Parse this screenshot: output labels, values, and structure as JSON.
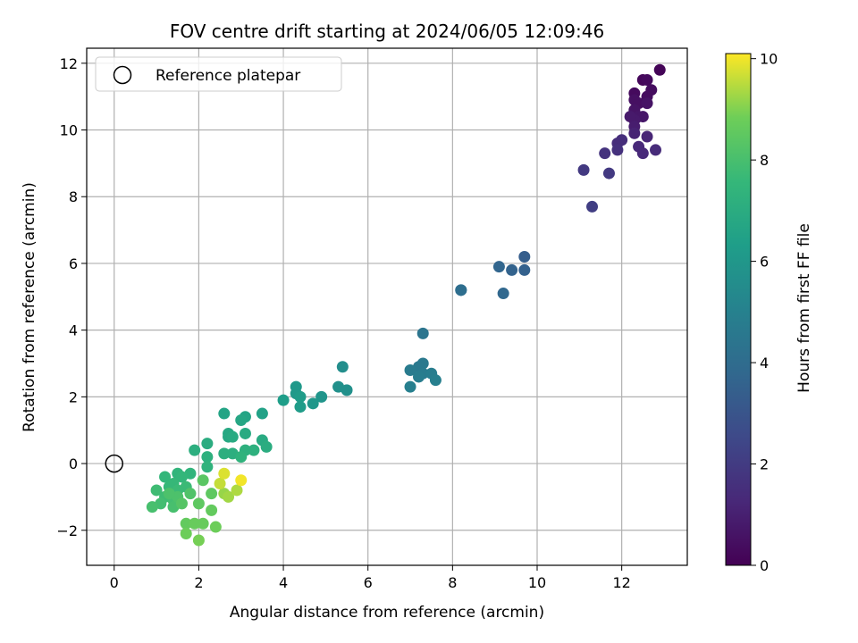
{
  "chart_data": {
    "type": "scatter",
    "title": "FOV centre drift starting at 2024/06/05 12:09:46",
    "xlabel": "Angular distance from reference (arcmin)",
    "ylabel": "Rotation from reference (arcmin)",
    "xlim": [
      -0.65,
      13.55
    ],
    "ylim": [
      -3.05,
      12.45
    ],
    "xticks": [
      0,
      2,
      4,
      6,
      8,
      10,
      12
    ],
    "yticks": [
      -2,
      0,
      2,
      4,
      6,
      8,
      10,
      12
    ],
    "grid": true,
    "legend": {
      "position": "top-left",
      "entries": [
        "Reference platepar"
      ]
    },
    "reference_point": {
      "x": 0,
      "y": 0
    },
    "colorbar": {
      "label": "Hours from first FF file",
      "range": [
        0,
        10.1
      ],
      "ticks": [
        0,
        2,
        4,
        6,
        8,
        10
      ],
      "colormap": "viridis"
    },
    "points": [
      {
        "x": 12.9,
        "y": 11.8,
        "h": 0.1
      },
      {
        "x": 12.5,
        "y": 11.5,
        "h": 0.2
      },
      {
        "x": 12.6,
        "y": 11.5,
        "h": 0.3
      },
      {
        "x": 12.3,
        "y": 11.1,
        "h": 0.3
      },
      {
        "x": 12.7,
        "y": 11.2,
        "h": 0.4
      },
      {
        "x": 12.6,
        "y": 11.0,
        "h": 0.4
      },
      {
        "x": 12.3,
        "y": 10.9,
        "h": 0.5
      },
      {
        "x": 12.4,
        "y": 10.8,
        "h": 0.5
      },
      {
        "x": 12.3,
        "y": 10.6,
        "h": 0.6
      },
      {
        "x": 12.6,
        "y": 10.8,
        "h": 0.6
      },
      {
        "x": 12.4,
        "y": 10.4,
        "h": 0.7
      },
      {
        "x": 12.5,
        "y": 10.4,
        "h": 0.7
      },
      {
        "x": 12.3,
        "y": 10.3,
        "h": 0.8
      },
      {
        "x": 12.2,
        "y": 10.4,
        "h": 0.8
      },
      {
        "x": 12.3,
        "y": 10.1,
        "h": 0.9
      },
      {
        "x": 12.3,
        "y": 9.9,
        "h": 1.1
      },
      {
        "x": 12.6,
        "y": 9.8,
        "h": 1.2
      },
      {
        "x": 12.4,
        "y": 9.5,
        "h": 1.3
      },
      {
        "x": 12.5,
        "y": 9.3,
        "h": 1.3
      },
      {
        "x": 12.8,
        "y": 9.4,
        "h": 1.4
      },
      {
        "x": 11.9,
        "y": 9.6,
        "h": 1.5
      },
      {
        "x": 12.0,
        "y": 9.7,
        "h": 1.5
      },
      {
        "x": 11.9,
        "y": 9.4,
        "h": 1.6
      },
      {
        "x": 11.6,
        "y": 9.3,
        "h": 1.7
      },
      {
        "x": 11.1,
        "y": 8.8,
        "h": 1.9
      },
      {
        "x": 11.7,
        "y": 8.7,
        "h": 1.9
      },
      {
        "x": 11.3,
        "y": 7.7,
        "h": 2.1
      },
      {
        "x": 9.7,
        "y": 6.2,
        "h": 3.4
      },
      {
        "x": 9.7,
        "y": 5.8,
        "h": 3.5
      },
      {
        "x": 9.4,
        "y": 5.8,
        "h": 3.6
      },
      {
        "x": 9.1,
        "y": 5.9,
        "h": 3.7
      },
      {
        "x": 9.2,
        "y": 5.1,
        "h": 3.8
      },
      {
        "x": 8.2,
        "y": 5.2,
        "h": 4.0
      },
      {
        "x": 8.2,
        "y": 5.2,
        "h": 4.1
      },
      {
        "x": 7.3,
        "y": 3.9,
        "h": 4.4
      },
      {
        "x": 7.3,
        "y": 3.0,
        "h": 4.6
      },
      {
        "x": 7.2,
        "y": 2.9,
        "h": 4.6
      },
      {
        "x": 7.0,
        "y": 2.8,
        "h": 4.7
      },
      {
        "x": 7.3,
        "y": 2.7,
        "h": 4.7
      },
      {
        "x": 7.2,
        "y": 2.6,
        "h": 4.8
      },
      {
        "x": 7.5,
        "y": 2.7,
        "h": 4.8
      },
      {
        "x": 7.6,
        "y": 2.5,
        "h": 4.9
      },
      {
        "x": 7.0,
        "y": 2.3,
        "h": 4.9
      },
      {
        "x": 5.4,
        "y": 2.9,
        "h": 5.6
      },
      {
        "x": 5.3,
        "y": 2.3,
        "h": 5.7
      },
      {
        "x": 5.5,
        "y": 2.2,
        "h": 5.7
      },
      {
        "x": 4.9,
        "y": 2.0,
        "h": 5.9
      },
      {
        "x": 4.7,
        "y": 1.8,
        "h": 6.0
      },
      {
        "x": 4.3,
        "y": 2.3,
        "h": 6.1
      },
      {
        "x": 4.3,
        "y": 2.1,
        "h": 6.1
      },
      {
        "x": 4.4,
        "y": 2.0,
        "h": 6.2
      },
      {
        "x": 4.4,
        "y": 1.7,
        "h": 6.2
      },
      {
        "x": 4.0,
        "y": 1.9,
        "h": 6.3
      },
      {
        "x": 3.5,
        "y": 1.5,
        "h": 6.5
      },
      {
        "x": 2.6,
        "y": 1.5,
        "h": 6.6
      },
      {
        "x": 3.1,
        "y": 1.4,
        "h": 6.6
      },
      {
        "x": 3.0,
        "y": 1.3,
        "h": 6.7
      },
      {
        "x": 2.7,
        "y": 0.9,
        "h": 6.8
      },
      {
        "x": 2.7,
        "y": 0.8,
        "h": 6.8
      },
      {
        "x": 2.8,
        "y": 0.8,
        "h": 6.9
      },
      {
        "x": 3.1,
        "y": 0.9,
        "h": 6.9
      },
      {
        "x": 3.5,
        "y": 0.7,
        "h": 6.9
      },
      {
        "x": 3.6,
        "y": 0.5,
        "h": 7.0
      },
      {
        "x": 2.2,
        "y": 0.6,
        "h": 7.0
      },
      {
        "x": 1.9,
        "y": 0.4,
        "h": 7.1
      },
      {
        "x": 2.6,
        "y": 0.3,
        "h": 7.1
      },
      {
        "x": 2.8,
        "y": 0.3,
        "h": 7.1
      },
      {
        "x": 3.1,
        "y": 0.4,
        "h": 7.2
      },
      {
        "x": 3.3,
        "y": 0.4,
        "h": 7.2
      },
      {
        "x": 2.2,
        "y": 0.2,
        "h": 7.2
      },
      {
        "x": 3.0,
        "y": 0.2,
        "h": 7.3
      },
      {
        "x": 2.2,
        "y": -0.1,
        "h": 7.3
      },
      {
        "x": 1.8,
        "y": -0.3,
        "h": 7.4
      },
      {
        "x": 1.5,
        "y": -0.3,
        "h": 7.4
      },
      {
        "x": 1.2,
        "y": -0.4,
        "h": 7.5
      },
      {
        "x": 1.6,
        "y": -0.4,
        "h": 7.5
      },
      {
        "x": 1.4,
        "y": -0.6,
        "h": 7.6
      },
      {
        "x": 1.3,
        "y": -0.7,
        "h": 7.6
      },
      {
        "x": 1.7,
        "y": -0.7,
        "h": 7.7
      },
      {
        "x": 1.5,
        "y": -0.8,
        "h": 7.7
      },
      {
        "x": 1.0,
        "y": -0.8,
        "h": 7.8
      },
      {
        "x": 1.2,
        "y": -1.0,
        "h": 7.8
      },
      {
        "x": 1.4,
        "y": -1.1,
        "h": 7.9
      },
      {
        "x": 1.1,
        "y": -1.2,
        "h": 7.9
      },
      {
        "x": 0.9,
        "y": -1.3,
        "h": 8.0
      },
      {
        "x": 1.4,
        "y": -1.3,
        "h": 8.0
      },
      {
        "x": 1.5,
        "y": -1.0,
        "h": 8.1
      },
      {
        "x": 1.3,
        "y": -0.9,
        "h": 8.1
      },
      {
        "x": 1.8,
        "y": -0.9,
        "h": 8.2
      },
      {
        "x": 1.6,
        "y": -1.2,
        "h": 8.3
      },
      {
        "x": 2.1,
        "y": -0.5,
        "h": 8.4
      },
      {
        "x": 2.3,
        "y": -0.9,
        "h": 8.5
      },
      {
        "x": 2.0,
        "y": -1.2,
        "h": 8.5
      },
      {
        "x": 2.3,
        "y": -1.4,
        "h": 8.6
      },
      {
        "x": 1.7,
        "y": -1.8,
        "h": 8.6
      },
      {
        "x": 1.9,
        "y": -1.8,
        "h": 8.7
      },
      {
        "x": 2.1,
        "y": -1.8,
        "h": 8.7
      },
      {
        "x": 2.4,
        "y": -1.9,
        "h": 8.8
      },
      {
        "x": 1.7,
        "y": -2.1,
        "h": 8.8
      },
      {
        "x": 2.0,
        "y": -2.3,
        "h": 8.9
      },
      {
        "x": 2.6,
        "y": -0.9,
        "h": 9.2
      },
      {
        "x": 2.7,
        "y": -1.0,
        "h": 9.3
      },
      {
        "x": 2.9,
        "y": -0.8,
        "h": 9.4
      },
      {
        "x": 2.5,
        "y": -0.6,
        "h": 9.6
      },
      {
        "x": 2.6,
        "y": -0.3,
        "h": 9.8
      },
      {
        "x": 3.0,
        "y": -0.5,
        "h": 10.0
      }
    ]
  }
}
